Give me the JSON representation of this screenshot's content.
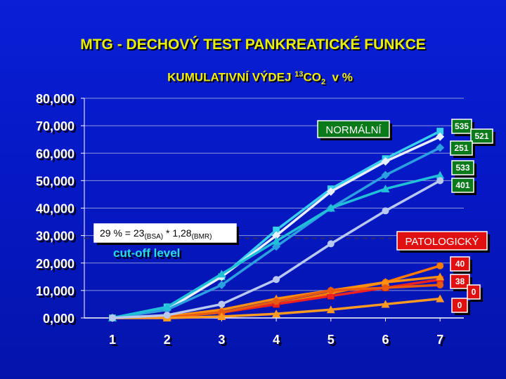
{
  "title": "MTG - DECHOVÝ TEST PANKREATICKÉ FUNKCE",
  "subtitle": {
    "main": "KUMULATIVNÍ VÝDEJ ",
    "isotope_sup": "13",
    "molecule": "CO",
    "molecule_sub": "2",
    "unit": "  v %"
  },
  "cutoff": {
    "value": 29,
    "formula_parts": [
      "29 % = 23",
      "(BSA)",
      " * 1,28",
      "(BMR)"
    ],
    "level_label": "cut-off level"
  },
  "group_labels": {
    "normal": "NORMÁLNÍ",
    "pathologic": "PATOLOGICKÝ"
  },
  "colors": {
    "background": "#0618c4",
    "title": "#e8f000",
    "normal_label_bg": "#0a7a1a",
    "pathologic_label_bg": "#e01010",
    "cutoff_line": "#2a2a6a",
    "grid": "#8a96d8"
  },
  "chart_data": {
    "type": "line",
    "title": "KUMULATIVNÍ VÝDEJ 13CO2 v %",
    "categories": [
      1,
      2,
      3,
      4,
      5,
      6,
      7
    ],
    "y_tick_labels": [
      "0,000",
      "10,000",
      "20,000",
      "30,000",
      "40,000",
      "50,000",
      "60,000",
      "70,000",
      "80,000"
    ],
    "ylim": [
      0,
      80
    ],
    "grid": true,
    "series": [
      {
        "name": "535",
        "group": "normal",
        "color": "#38d0f0",
        "marker": "square",
        "values": [
          0,
          4,
          15,
          32,
          47,
          58,
          68
        ]
      },
      {
        "name": "521",
        "group": "normal",
        "color": "#e8f0ff",
        "marker": "diamond",
        "values": [
          0,
          3,
          15,
          30,
          46,
          57,
          66
        ]
      },
      {
        "name": "251",
        "group": "normal",
        "color": "#2aa0e0",
        "marker": "diamond",
        "values": [
          0,
          3,
          12,
          26,
          40,
          52,
          62
        ]
      },
      {
        "name": "533",
        "group": "normal",
        "color": "#20c0d8",
        "marker": "triangle",
        "values": [
          0,
          4,
          16,
          28,
          40,
          47,
          52
        ]
      },
      {
        "name": "401",
        "group": "normal",
        "color": "#b8c8f0",
        "marker": "circle",
        "values": [
          0,
          1,
          5,
          14,
          27,
          39,
          50
        ]
      },
      {
        "name": "40",
        "group": "pathologic",
        "color": "#ff7a00",
        "marker": "circle",
        "values": [
          0,
          0.5,
          2,
          5,
          9,
          13,
          19
        ]
      },
      {
        "name": "38",
        "group": "pathologic",
        "color": "#ee2020",
        "marker": "square",
        "values": [
          0,
          0.5,
          2,
          5,
          8,
          11,
          14
        ]
      },
      {
        "name": "0",
        "group": "pathologic",
        "color": "#ff9010",
        "marker": "triangle",
        "values": [
          0,
          0.5,
          3,
          7,
          10,
          13,
          15
        ]
      },
      {
        "name": "0",
        "group": "pathologic",
        "color": "#e85a10",
        "marker": "circle",
        "values": [
          0,
          0.2,
          2,
          6,
          10,
          11,
          12
        ]
      },
      {
        "name": "0",
        "group": "pathologic",
        "color": "#ff9a20",
        "marker": "triangle",
        "values": [
          0,
          0,
          0.5,
          1.5,
          3,
          5,
          7
        ]
      }
    ]
  }
}
